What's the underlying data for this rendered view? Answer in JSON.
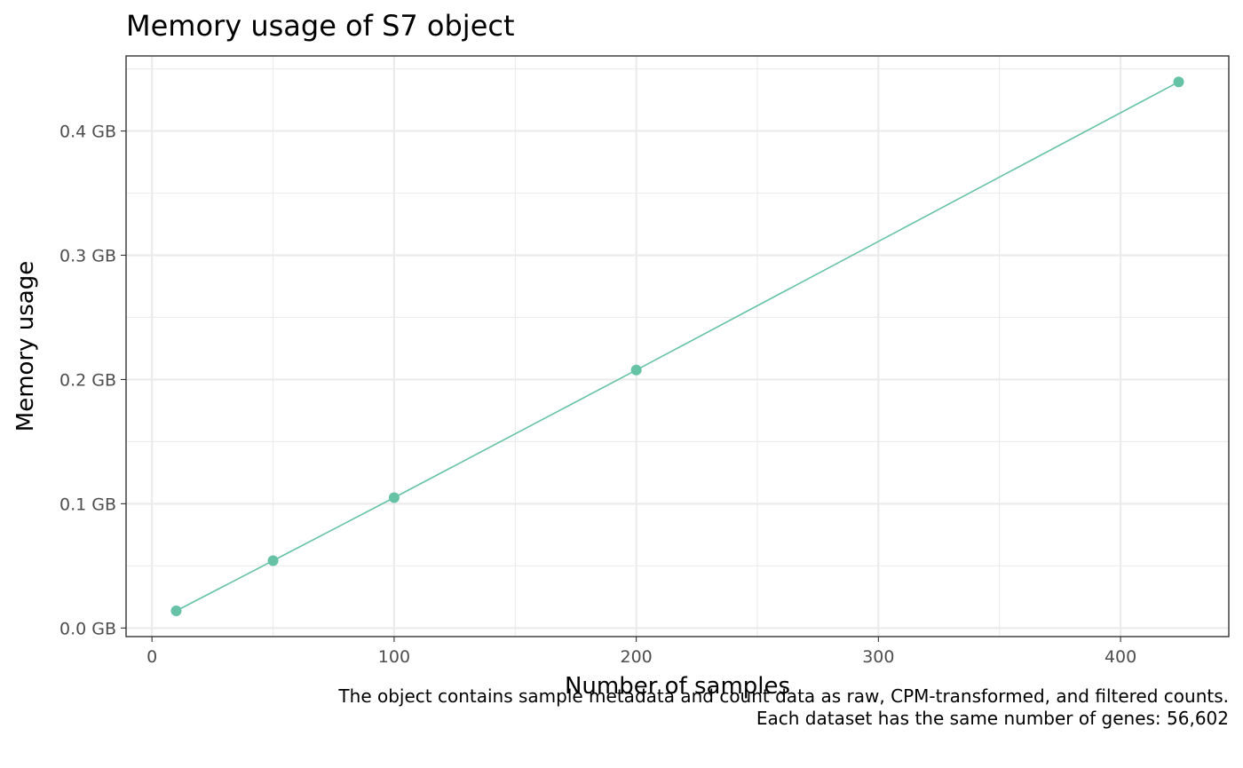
{
  "chart_data": {
    "type": "line",
    "title": "Memory usage of S7 object",
    "xlabel": "Number of samples",
    "ylabel": "Memory usage",
    "caption": [
      "The object contains sample metadata and count data as raw, CPM-transformed, and filtered counts.",
      "Each dataset has the same number of genes: 56,602"
    ],
    "x_ticks": [
      0,
      100,
      200,
      300,
      400
    ],
    "x_tick_labels": [
      "0",
      "100",
      "200",
      "300",
      "400"
    ],
    "x_minor_ticks": [
      50,
      150,
      250,
      350
    ],
    "y_ticks": [
      0,
      0.1,
      0.2,
      0.3,
      0.4
    ],
    "y_tick_labels": [
      "0.0 GB",
      "0.1 GB",
      "0.2 GB",
      "0.3 GB",
      "0.4 GB"
    ],
    "y_minor_ticks": [
      0.05,
      0.15,
      0.25,
      0.35,
      0.45
    ],
    "xlim": [
      -10.7,
      444.7
    ],
    "ylim": [
      -0.0069,
      0.4604
    ],
    "grid": true,
    "legend": "none",
    "series": [
      {
        "color": "#66c2a5",
        "x": [
          10,
          50,
          100,
          200,
          424
        ],
        "y": [
          0.0138,
          0.0542,
          0.1049,
          0.2076,
          0.4395
        ]
      }
    ]
  }
}
